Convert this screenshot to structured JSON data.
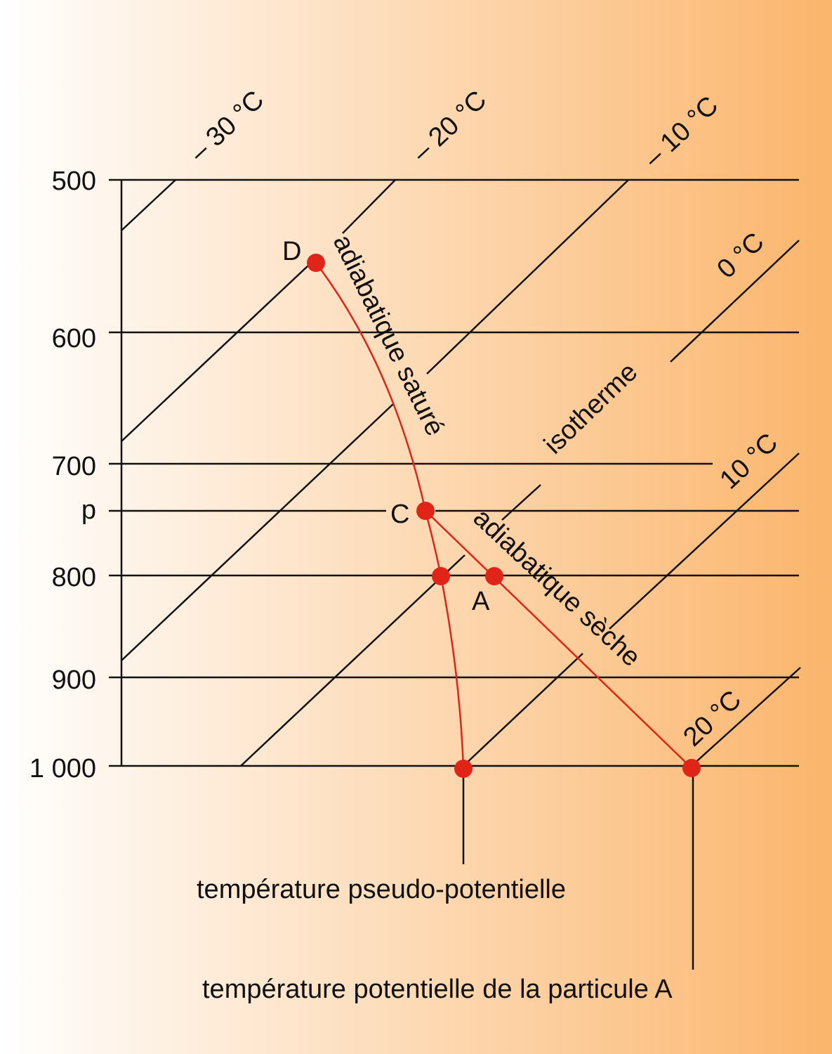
{
  "pressure_labels": [
    "500",
    "600",
    "700",
    "p",
    "800",
    "900",
    "1 000"
  ],
  "isotherm_labels": [
    "– 30 °C",
    "– 20 °C",
    "– 10 °C",
    "0 °C",
    "10 °C",
    "20 °C"
  ],
  "curve_labels": {
    "saturated": "adiabatique saturé",
    "dry": "adiabatique sèche",
    "isotherm": "isotherme"
  },
  "points": {
    "D": "D",
    "C": "C",
    "A": "A"
  },
  "bottom_labels": [
    "température pseudo-potentielle",
    "température potentielle de la particule A"
  ]
}
